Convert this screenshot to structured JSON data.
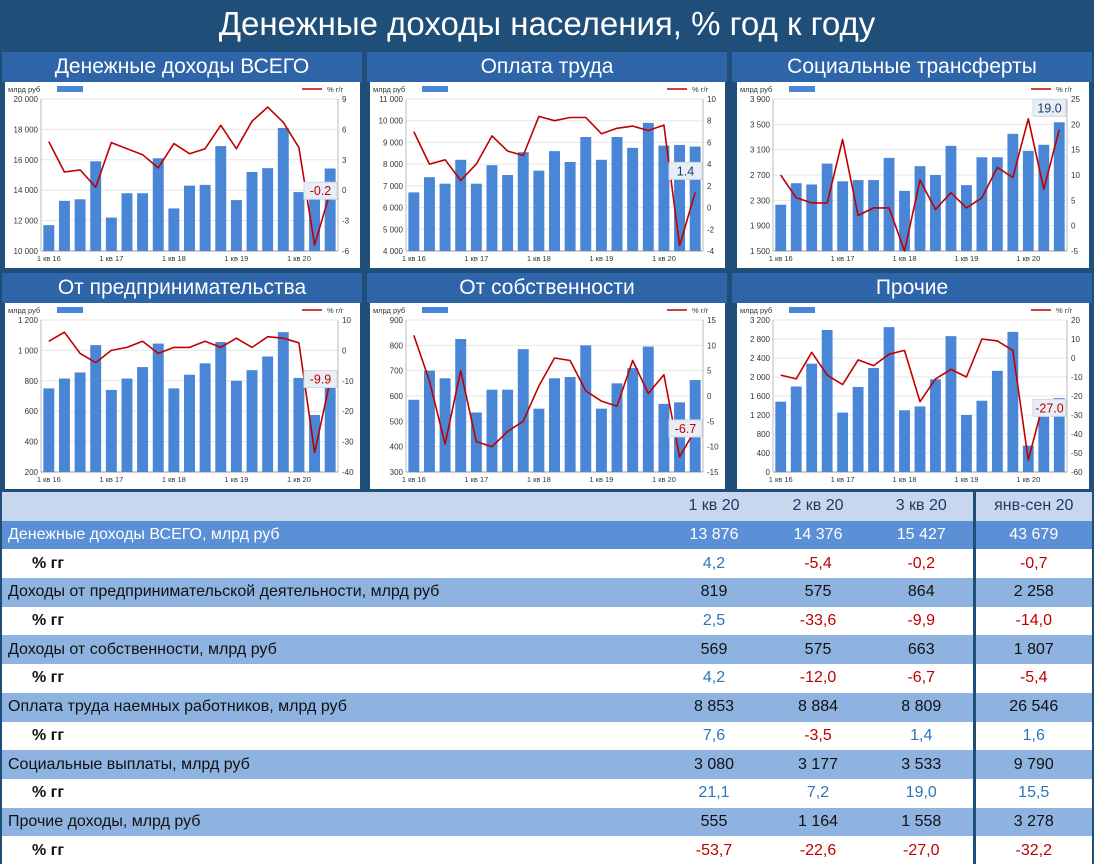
{
  "title": "Денежные доходы населения, % год к году",
  "panels": {
    "total": "Денежные доходы ВСЕГО",
    "wages": "Оплата труда",
    "social": "Социальные трансферты",
    "business": "От предпринимательства",
    "property": "От собственности",
    "other": "Прочие"
  },
  "chart_data": [
    {
      "id": "total",
      "type": "bar+line",
      "left_unit": "млрд руб",
      "right_unit": "% г/г",
      "ylim": [
        10000,
        20000
      ],
      "left_ticks": [
        "10 000",
        "12 000",
        "14 000",
        "16 000",
        "18 000",
        "20 000"
      ],
      "y2lim": [
        -6,
        9
      ],
      "right_ticks": [
        "-6",
        "-3",
        "0",
        "3",
        "6",
        "9"
      ],
      "x_labels": [
        "1 кв 16",
        "1 кв 17",
        "1 кв 18",
        "1 кв 19",
        "1 кв 20"
      ],
      "bars": [
        11700,
        13300,
        13400,
        15900,
        12200,
        13800,
        13800,
        16100,
        12800,
        14300,
        14350,
        16900,
        13350,
        15200,
        15450,
        18100,
        13876,
        14376,
        15427
      ],
      "line": [
        4.8,
        1.8,
        2.0,
        0.3,
        4.7,
        4.1,
        3.5,
        2.2,
        4.6,
        3.6,
        4.1,
        6.4,
        4.1,
        6.8,
        8.2,
        6.7,
        4.2,
        -5.4,
        -0.2
      ],
      "callout": "-0.2"
    },
    {
      "id": "wages",
      "type": "bar+line",
      "left_unit": "млрд руб",
      "right_unit": "% г/г",
      "ylim": [
        4000,
        11000
      ],
      "left_ticks": [
        "4 000",
        "5 000",
        "6 000",
        "7 000",
        "8 000",
        "9 000",
        "10 000",
        "11 000"
      ],
      "y2lim": [
        -4,
        10
      ],
      "right_ticks": [
        "-4",
        "-2",
        "0",
        "2",
        "4",
        "6",
        "8",
        "10"
      ],
      "x_labels": [
        "1 кв 16",
        "1 кв 17",
        "1 кв 18",
        "1 кв 19",
        "1 кв 20"
      ],
      "bars": [
        6700,
        7400,
        7100,
        8200,
        7100,
        7950,
        7500,
        8550,
        7700,
        8600,
        8100,
        9250,
        8200,
        9250,
        8750,
        9900,
        8853,
        8884,
        8809
      ],
      "line": [
        7.0,
        4.0,
        4.4,
        2.5,
        4.0,
        6.6,
        5.2,
        4.8,
        8.4,
        8.0,
        8.3,
        8.3,
        6.8,
        7.3,
        7.5,
        7.1,
        7.6,
        -3.5,
        1.4
      ],
      "callout": "1.4"
    },
    {
      "id": "social",
      "type": "bar+line",
      "left_unit": "млрд руб",
      "right_unit": "% г/г",
      "ylim": [
        1500,
        3900
      ],
      "left_ticks": [
        "1 500",
        "1 900",
        "2 300",
        "2 700",
        "3 100",
        "3 500",
        "3 900"
      ],
      "y2lim": [
        -5,
        25
      ],
      "right_ticks": [
        "-5",
        "0",
        "5",
        "10",
        "15",
        "20",
        "25"
      ],
      "x_labels": [
        "1 кв 16",
        "1 кв 17",
        "1 кв 18",
        "1 кв 19",
        "1 кв 20"
      ],
      "bars": [
        2230,
        2570,
        2550,
        2880,
        2600,
        2620,
        2620,
        2970,
        2450,
        2840,
        2700,
        3160,
        2540,
        2980,
        2980,
        3350,
        3080,
        3177,
        3533
      ],
      "line": [
        10.0,
        5.5,
        4.5,
        4.5,
        17.0,
        2.0,
        3.5,
        3.5,
        -5.0,
        9.0,
        3.2,
        6.5,
        3.5,
        5.5,
        11.5,
        9.5,
        21.1,
        7.2,
        19.0
      ],
      "callout": "19.0"
    },
    {
      "id": "business",
      "type": "bar+line",
      "left_unit": "млрд руб",
      "right_unit": "% г/г",
      "ylim": [
        200,
        1200
      ],
      "left_ticks": [
        "200",
        "400",
        "600",
        "800",
        "1 000",
        "1 200"
      ],
      "y2lim": [
        -40,
        10
      ],
      "right_ticks": [
        "-40",
        "-30",
        "-20",
        "-10",
        "0",
        "10"
      ],
      "x_labels": [
        "1 кв 16",
        "1 кв 17",
        "1 кв 18",
        "1 кв 19",
        "1 кв 20"
      ],
      "bars": [
        750,
        815,
        855,
        1035,
        740,
        815,
        890,
        1045,
        750,
        840,
        915,
        1055,
        800,
        870,
        960,
        1120,
        819,
        575,
        864
      ],
      "line": [
        3.0,
        6.0,
        -1.0,
        -4.0,
        0.0,
        1.0,
        3.0,
        -1.0,
        1.0,
        1.0,
        3.0,
        1.0,
        4.0,
        1.0,
        4.5,
        4.0,
        2.5,
        -33.6,
        -9.9
      ],
      "callout": "-9.9"
    },
    {
      "id": "property",
      "type": "bar+line",
      "left_unit": "млрд руб",
      "right_unit": "% г/г",
      "ylim": [
        300,
        900
      ],
      "left_ticks": [
        "300",
        "400",
        "500",
        "600",
        "700",
        "800",
        "900"
      ],
      "y2lim": [
        -15,
        15
      ],
      "right_ticks": [
        "-15",
        "-10",
        "-5",
        "0",
        "5",
        "10",
        "15"
      ],
      "x_labels": [
        "1 кв 16",
        "1 кв 17",
        "1 кв 18",
        "1 кв 19",
        "1 кв 20"
      ],
      "bars": [
        585,
        700,
        670,
        825,
        535,
        625,
        625,
        785,
        550,
        670,
        675,
        800,
        550,
        650,
        710,
        795,
        569,
        575,
        663
      ],
      "line": [
        12.0,
        3.0,
        -9.5,
        5.0,
        -9.0,
        -10.0,
        -7.0,
        -5.0,
        2.0,
        7.5,
        7.0,
        1.0,
        -1.0,
        -2.0,
        7.0,
        0.5,
        4.2,
        -12.0,
        -6.7
      ],
      "callout": "-6.7"
    },
    {
      "id": "other",
      "type": "bar+line",
      "left_unit": "млрд руб",
      "right_unit": "% г/г",
      "ylim": [
        0,
        3200
      ],
      "left_ticks": [
        "0",
        "400",
        "800",
        "1 200",
        "1 600",
        "2 000",
        "2 400",
        "2 800",
        "3 200"
      ],
      "y2lim": [
        -60,
        20
      ],
      "right_ticks": [
        "-60",
        "-50",
        "-40",
        "-30",
        "-20",
        "-10",
        "0",
        "10",
        "20"
      ],
      "x_labels": [
        "1 кв 16",
        "1 кв 17",
        "1 кв 18",
        "1 кв 19",
        "1 кв 20"
      ],
      "bars": [
        1480,
        1800,
        2280,
        2990,
        1250,
        1790,
        2190,
        3050,
        1300,
        1380,
        1950,
        2860,
        1200,
        1500,
        2130,
        2950,
        555,
        1164,
        1558
      ],
      "line": [
        -9.0,
        -11.0,
        3.0,
        -9.0,
        -14.0,
        -1.0,
        -4.0,
        2.0,
        4.0,
        -23.0,
        -11.0,
        -6.0,
        -10.0,
        10.0,
        9.0,
        4.0,
        -53.7,
        -22.6,
        -27.0
      ],
      "callout": "-27.0"
    }
  ],
  "table": {
    "headers": [
      "1 кв 20",
      "2 кв 20",
      "3 кв 20",
      "янв-сен 20"
    ],
    "rows": [
      {
        "label": "Денежные доходы ВСЕГО, млрд руб",
        "values": [
          "13 876",
          "14 376",
          "15 427",
          "43 679"
        ]
      },
      {
        "label": "% гг",
        "values": [
          "4,2",
          "-5,4",
          "-0,2",
          "-0,7"
        ]
      },
      {
        "label": "Доходы от предпринимательской деятельности, млрд руб",
        "values": [
          "819",
          "575",
          "864",
          "2 258"
        ]
      },
      {
        "label": "% гг",
        "values": [
          "2,5",
          "-33,6",
          "-9,9",
          "-14,0"
        ]
      },
      {
        "label": "Доходы от собственности, млрд руб",
        "values": [
          "569",
          "575",
          "663",
          "1 807"
        ]
      },
      {
        "label": "% гг",
        "values": [
          "4,2",
          "-12,0",
          "-6,7",
          "-5,4"
        ]
      },
      {
        "label": "Оплата труда наемных работников, млрд руб",
        "values": [
          "8 853",
          "8 884",
          "8 809",
          "26 546"
        ]
      },
      {
        "label": "% гг",
        "values": [
          "7,6",
          "-3,5",
          "1,4",
          "1,6"
        ]
      },
      {
        "label": "Социальные выплаты, млрд руб",
        "values": [
          "3 080",
          "3 177",
          "3 533",
          "9 790"
        ]
      },
      {
        "label": "% гг",
        "values": [
          "21,1",
          "7,2",
          "19,0",
          "15,5"
        ]
      },
      {
        "label": "Прочие доходы, млрд руб",
        "values": [
          "555",
          "1 164",
          "1 558",
          "3 278"
        ]
      },
      {
        "label": "% гг",
        "values": [
          "-53,7",
          "-22,6",
          "-27,0",
          "-32,2"
        ]
      }
    ]
  },
  "colors": {
    "bar": "#4a86d6",
    "line": "#c00000",
    "background": "#1f4e79"
  }
}
